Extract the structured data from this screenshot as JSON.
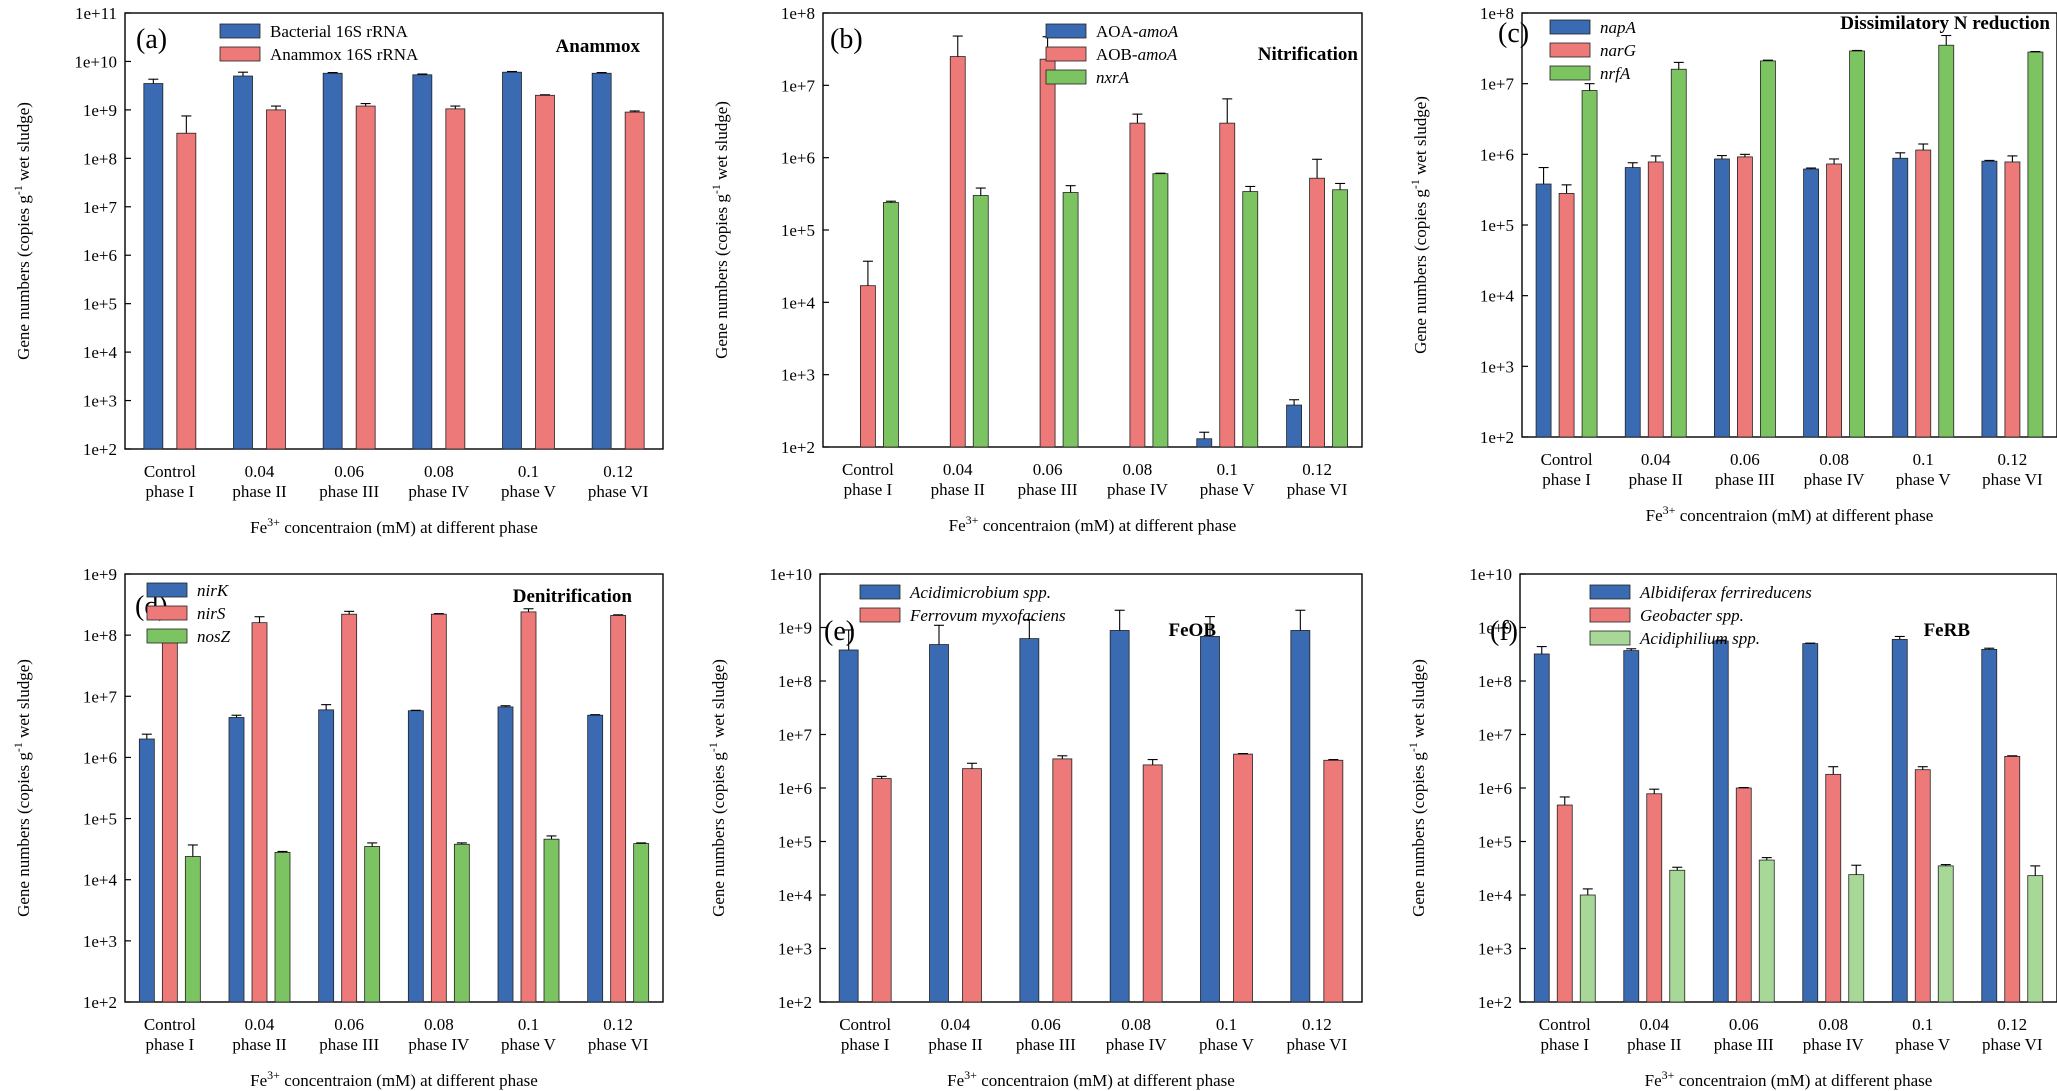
{
  "figure": {
    "ylabel_text": "Gene numbers (copies g",
    "ylabel_sup": "-1",
    "ylabel_tail": " wet sludge)",
    "xlabel_pre": "Fe",
    "xlabel_sup": "3+",
    "xlabel_post": " concentraion (mM) at different phase",
    "categories": [
      [
        "Control",
        "phase I"
      ],
      [
        "0.04",
        "phase II"
      ],
      [
        "0.06",
        "phase III"
      ],
      [
        "0.08",
        "phase IV"
      ],
      [
        "0.1",
        "phase V"
      ],
      [
        "0.12",
        "phase VI"
      ]
    ],
    "colors": {
      "blue": "#3a6ab2",
      "red": "#ee7979",
      "green": "#7cc462",
      "lightgreen": "#a8d898"
    }
  },
  "chart_data": [
    {
      "type": "bar",
      "panel": "(a)",
      "title": "Anammox",
      "yscale": "log",
      "ylim": [
        100,
        100000000000
      ],
      "yticks": [
        "1e+2",
        "1e+3",
        "1e+4",
        "1e+5",
        "1e+6",
        "1e+7",
        "1e+8",
        "1e+9",
        "1e+10",
        "1e+11"
      ],
      "series": [
        {
          "name": "Bacterial 16S rRNA",
          "italic": false,
          "color": "#3a6ab2",
          "values": [
            3500000000.0,
            5000000000.0,
            5700000000.0,
            5300000000.0,
            6000000000.0,
            5700000000.0
          ],
          "errors": [
            4300000000.0,
            6000000000.0,
            5900000000.0,
            5500000000.0,
            6200000000.0,
            5900000000.0
          ]
        },
        {
          "name": "Anammox 16S rRNA",
          "italic": false,
          "color": "#ee7979",
          "values": [
            330000000.0,
            1000000000.0,
            1200000000.0,
            1050000000.0,
            2000000000.0,
            900000000.0
          ],
          "errors": [
            750000000.0,
            1200000000.0,
            1350000000.0,
            1200000000.0,
            2050000000.0,
            950000000.0
          ]
        }
      ]
    },
    {
      "type": "bar",
      "panel": "(b)",
      "title": "Nitrification",
      "yscale": "log",
      "ylim": [
        100,
        100000000
      ],
      "yticks": [
        "1e+2",
        "1e+3",
        "1e+4",
        "1e+5",
        "1e+6",
        "1e+7",
        "1e+8"
      ],
      "series": [
        {
          "name": "AOA-",
          "name_italic": "amoA",
          "color": "#3a6ab2",
          "values": [
            null,
            null,
            null,
            null,
            130,
            380
          ],
          "errors": [
            null,
            null,
            null,
            null,
            160,
            450
          ]
        },
        {
          "name": "AOB-",
          "name_italic": "amoA",
          "color": "#ee7979",
          "values": [
            17000,
            25000000,
            23000000,
            3000000,
            3000000,
            520000
          ],
          "errors": [
            37000,
            48000000,
            47000000,
            4000000,
            6500000,
            950000
          ]
        },
        {
          "name": "",
          "name_italic": "nxrA",
          "color": "#7cc462",
          "values": [
            240000,
            300000,
            330000,
            600000,
            340000,
            360000
          ],
          "errors": [
            250000,
            380000,
            410000,
            610000,
            400000,
            440000
          ]
        }
      ]
    },
    {
      "type": "bar",
      "panel": "(c)",
      "title": "Dissimilatory N reduction",
      "yscale": "log",
      "ylim": [
        100,
        100000000
      ],
      "yticks": [
        "1e+2",
        "1e+3",
        "1e+4",
        "1e+5",
        "1e+6",
        "1e+7",
        "1e+8"
      ],
      "series": [
        {
          "name": "",
          "name_italic": "napA",
          "color": "#3a6ab2",
          "values": [
            380000,
            650000,
            860000,
            620000,
            880000,
            800000
          ],
          "errors": [
            650000,
            760000,
            960000,
            640000,
            1050000,
            820000
          ]
        },
        {
          "name": "",
          "name_italic": "narG",
          "color": "#ee7979",
          "values": [
            280000,
            780000,
            920000,
            730000,
            1150000,
            780000
          ],
          "errors": [
            370000,
            950000,
            1000000,
            860000,
            1400000,
            950000
          ]
        },
        {
          "name": "",
          "name_italic": "nrfA",
          "color": "#7cc462",
          "values": [
            8000000,
            16000000,
            21000000,
            29000000,
            35000000,
            28000000
          ],
          "errors": [
            10000000,
            20000000,
            21500000,
            29500000,
            48000000,
            28500000
          ]
        }
      ]
    },
    {
      "type": "bar",
      "panel": "(d)",
      "title": "Denitrification",
      "yscale": "log",
      "ylim": [
        100,
        1000000000
      ],
      "yticks": [
        "1e+2",
        "1e+3",
        "1e+4",
        "1e+5",
        "1e+6",
        "1e+7",
        "1e+8",
        "1e+9"
      ],
      "series": [
        {
          "name": "",
          "name_italic": "nirK",
          "color": "#3a6ab2",
          "values": [
            2000000,
            4500000,
            6000000,
            5800000,
            6700000,
            4900000
          ],
          "errors": [
            2400000,
            4900000,
            7300000,
            5900000,
            7000000,
            5000000
          ]
        },
        {
          "name": "",
          "name_italic": "nirS",
          "color": "#ee7979",
          "values": [
            100000000,
            160000000,
            220000000,
            220000000,
            240000000,
            210000000
          ],
          "errors": [
            120000000,
            200000000,
            245000000,
            225000000,
            270000000,
            215000000
          ]
        },
        {
          "name": "",
          "name_italic": "nosZ",
          "color": "#7cc462",
          "values": [
            24000,
            28000,
            35000,
            38000,
            46000,
            39000
          ],
          "errors": [
            37000,
            29000,
            40000,
            40000,
            52000,
            40000
          ]
        }
      ]
    },
    {
      "type": "bar",
      "panel": "(e)",
      "title": "FeOB",
      "yscale": "log",
      "ylim": [
        100,
        10000000000
      ],
      "yticks": [
        "1e+2",
        "1e+3",
        "1e+4",
        "1e+5",
        "1e+6",
        "1e+7",
        "1e+8",
        "1e+9",
        "1e+10"
      ],
      "series": [
        {
          "name": "",
          "name_italic": "Acidimicrobium spp.",
          "color": "#3a6ab2",
          "values": [
            380000000,
            480000000,
            620000000,
            880000000,
            680000000,
            880000000
          ],
          "errors": [
            900000000,
            1100000000,
            1400000000,
            2100000000,
            1600000000,
            2100000000
          ]
        },
        {
          "name": "",
          "name_italic": "Ferrovum myxofaciens",
          "color": "#ee7979",
          "values": [
            1500000,
            2300000,
            3500000,
            2700000,
            4300000,
            3300000
          ],
          "errors": [
            1650000,
            2900000,
            4000000,
            3400000,
            4400000,
            3400000
          ]
        }
      ]
    },
    {
      "type": "bar",
      "panel": "(f)",
      "title": "FeRB",
      "yscale": "log",
      "ylim": [
        100,
        10000000000
      ],
      "yticks": [
        "1e+2",
        "1e+3",
        "1e+4",
        "1e+5",
        "1e+6",
        "1e+7",
        "1e+8",
        "1e+9",
        "1e+10"
      ],
      "series": [
        {
          "name": "",
          "name_italic": "Albidiferax ferrireducens",
          "color": "#3a6ab2",
          "values": [
            320000000,
            370000000,
            560000000,
            500000000,
            600000000,
            390000000
          ],
          "errors": [
            440000000,
            400000000,
            580000000,
            510000000,
            680000000,
            410000000
          ]
        },
        {
          "name": "",
          "name_italic": "Geobacter spp.",
          "color": "#ee7979",
          "values": [
            480000,
            780000,
            1000000,
            1800000,
            2200000,
            3900000
          ],
          "errors": [
            680000,
            950000,
            1020000,
            2500000,
            2500000,
            4000000
          ]
        },
        {
          "name": "",
          "name_italic": "Acidiphilium spp.",
          "color": "#a8d898",
          "values": [
            10000,
            29000,
            45000,
            24000,
            35000,
            23000
          ],
          "errors": [
            13000,
            33000,
            50000,
            36000,
            37000,
            35000
          ]
        }
      ]
    }
  ]
}
